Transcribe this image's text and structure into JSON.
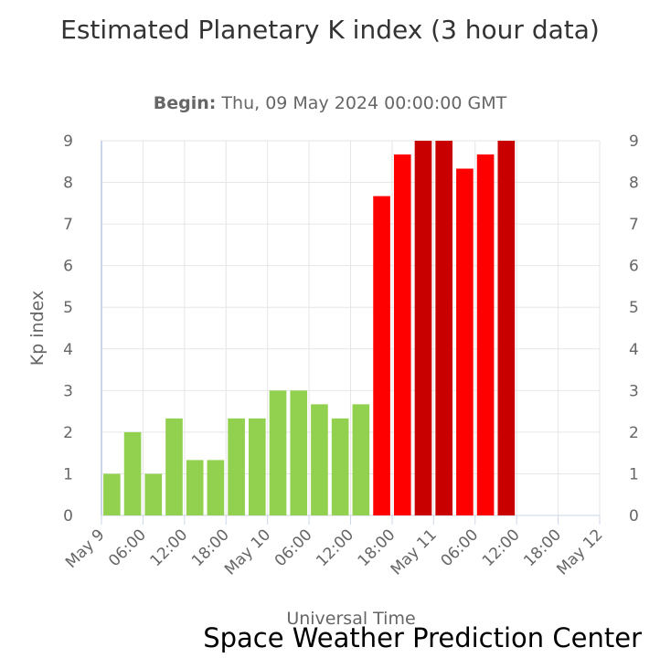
{
  "chart_data": {
    "type": "bar",
    "title": "Estimated Planetary K index (3 hour data)",
    "subtitle_label": "Begin:",
    "subtitle_value": "Thu, 09 May 2024 00:00:00 GMT",
    "ylabel": "Kp index",
    "xlabel": "Universal Time",
    "credit": "Space Weather Prediction Center",
    "ylim": [
      0,
      9
    ],
    "yticks": [
      "0",
      "1",
      "2",
      "3",
      "4",
      "5",
      "6",
      "7",
      "8",
      "9"
    ],
    "xlim_hours": [
      0,
      72
    ],
    "xticks": [
      {
        "hour": 0,
        "label": "May 9"
      },
      {
        "hour": 6,
        "label": "06:00"
      },
      {
        "hour": 12,
        "label": "12:00"
      },
      {
        "hour": 18,
        "label": "18:00"
      },
      {
        "hour": 24,
        "label": "May 10"
      },
      {
        "hour": 30,
        "label": "06:00"
      },
      {
        "hour": 36,
        "label": "12:00"
      },
      {
        "hour": 42,
        "label": "18:00"
      },
      {
        "hour": 48,
        "label": "May 11"
      },
      {
        "hour": 54,
        "label": "06:00"
      },
      {
        "hour": 60,
        "label": "12:00"
      },
      {
        "hour": 66,
        "label": "18:00"
      },
      {
        "hour": 72,
        "label": "May 12"
      }
    ],
    "values": [
      1.0,
      2.0,
      1.0,
      2.33,
      1.33,
      1.33,
      2.33,
      2.33,
      3.0,
      3.0,
      2.67,
      2.33,
      2.67,
      7.67,
      8.67,
      9.0,
      9.0,
      8.33,
      8.67,
      9.0
    ],
    "colors": [
      "#92d050",
      "#92d050",
      "#92d050",
      "#92d050",
      "#92d050",
      "#92d050",
      "#92d050",
      "#92d050",
      "#92d050",
      "#92d050",
      "#92d050",
      "#92d050",
      "#92d050",
      "#ff0000",
      "#ff0000",
      "#c80000",
      "#c80000",
      "#ff0000",
      "#ff0000",
      "#c80000"
    ],
    "grid": true
  }
}
